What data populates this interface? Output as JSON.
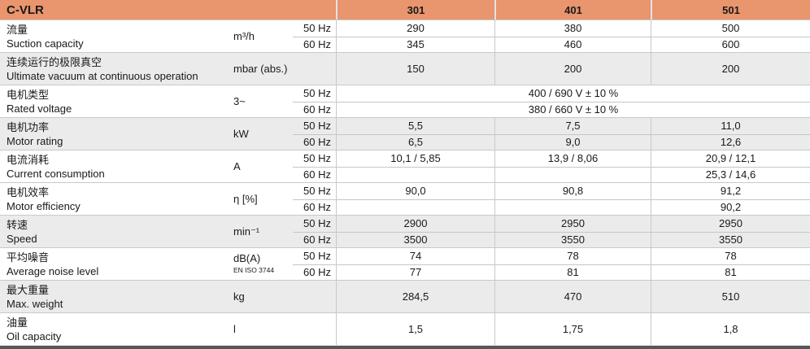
{
  "colors": {
    "accent": "#e9956e",
    "row_shade": "#ebebeb",
    "divider": "#c9c9c9",
    "subdivider": "#c6c6c6",
    "bottom_bar": "#55575a",
    "text": "#191919"
  },
  "header": {
    "product": "C-VLR",
    "models": [
      "301",
      "401",
      "501"
    ]
  },
  "rows": [
    {
      "label_zh": "流量",
      "label_en": "Suction capacity",
      "unit": "m³/h",
      "freqs": [
        "50 Hz",
        "60 Hz"
      ],
      "values": [
        [
          "290",
          "380",
          "500"
        ],
        [
          "345",
          "460",
          "600"
        ]
      ],
      "shade": false
    },
    {
      "label_zh": "连续运行的极限真空",
      "label_en": "Ultimate vacuum at continuous operation",
      "unit": "mbar (abs.)",
      "values": [
        [
          "150",
          "200",
          "200"
        ]
      ],
      "shade": true
    },
    {
      "label_zh": "电机类型",
      "label_en": "Rated voltage",
      "unit": "3~",
      "freqs": [
        "50 Hz",
        "60 Hz"
      ],
      "span": true,
      "values": [
        [
          "400 / 690 V ± 10 %"
        ],
        [
          "380 / 660 V ± 10 %"
        ]
      ],
      "shade": false
    },
    {
      "label_zh": "电机功率",
      "label_en": "Motor rating",
      "unit": "kW",
      "freqs": [
        "50 Hz",
        "60 Hz"
      ],
      "values": [
        [
          "5,5",
          "7,5",
          "11,0"
        ],
        [
          "6,5",
          "9,0",
          "12,6"
        ]
      ],
      "shade": true
    },
    {
      "label_zh": "电流消耗",
      "label_en": "Current consumption",
      "unit": "A",
      "freqs": [
        "50 Hz",
        "60 Hz"
      ],
      "values": [
        [
          "10,1 / 5,85",
          "13,9 / 8,06",
          "20,9 / 12,1"
        ],
        [
          "",
          "",
          "25,3 / 14,6"
        ]
      ],
      "shade": false
    },
    {
      "label_zh": "电机效率",
      "label_en": "Motor efficiency",
      "unit": "η [%]",
      "freqs": [
        "50 Hz",
        "60 Hz"
      ],
      "values": [
        [
          "90,0",
          "90,8",
          "91,2"
        ],
        [
          "",
          "",
          "90,2"
        ]
      ],
      "shade": false
    },
    {
      "label_zh": "转速",
      "label_en": "Speed",
      "unit": "min⁻¹",
      "freqs": [
        "50 Hz",
        "60 Hz"
      ],
      "values": [
        [
          "2900",
          "2950",
          "2950"
        ],
        [
          "3500",
          "3550",
          "3550"
        ]
      ],
      "shade": true
    },
    {
      "label_zh": "平均噪音",
      "label_en": "Average noise level",
      "unit": "dB(A)",
      "unit_sub": "EN ISO 3744",
      "freqs": [
        "50 Hz",
        "60 Hz"
      ],
      "values": [
        [
          "74",
          "78",
          "78"
        ],
        [
          "77",
          "81",
          "81"
        ]
      ],
      "shade": false
    },
    {
      "label_zh": "最大重量",
      "label_en": "Max. weight",
      "unit": "kg",
      "values": [
        [
          "284,5",
          "470",
          "510"
        ]
      ],
      "shade": true
    },
    {
      "label_zh": "油量",
      "label_en": "Oil capacity",
      "unit": "l",
      "values": [
        [
          "1,5",
          "1,75",
          "1,8"
        ]
      ],
      "shade": false
    }
  ]
}
